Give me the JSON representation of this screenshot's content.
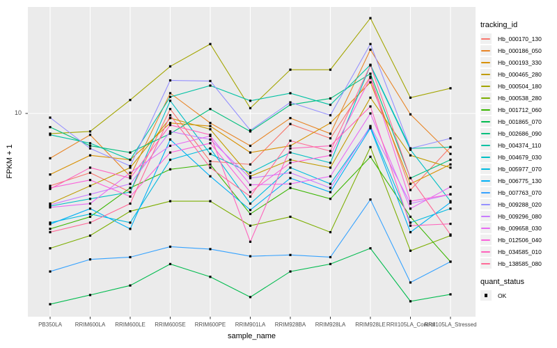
{
  "chart": {
    "xlabel": "sample_name",
    "ylabel": "FPKM + 1",
    "y_tick_label": "10",
    "legend": {
      "tracking_title": "tracking_id",
      "quant_title": "quant_status",
      "quant_label": "OK"
    },
    "colors": {
      "panel_bg": "#EBEBEB",
      "grid": "#FFFFFF",
      "axis_text": "#4D4D4D",
      "tick_mark": "#333333",
      "point": "#000000",
      "legend_key_bg": "#F0F0F0"
    }
  },
  "chart_data": {
    "type": "line",
    "title": "",
    "xlabel": "sample_name",
    "ylabel": "FPKM + 1",
    "y_scale": "log10",
    "y_ticks": [
      10
    ],
    "ylim": [
      1,
      32
    ],
    "grid": true,
    "legend_position": "right",
    "series_legend_title": "tracking_id",
    "marker_legend_title": "quant_status",
    "marker_legend_labels": [
      "OK"
    ],
    "point_marker": "black-square",
    "x": [
      "PB350LA",
      "RRIM600LA",
      "RRIM600LE",
      "RRIM600SE",
      "RRIM600PE",
      "RRIM901LA",
      "RRIM928BA",
      "RRIM928LA",
      "RRIM928LE",
      "RRII105LA_Control",
      "RRII105LA_Stressed"
    ],
    "series": [
      {
        "name": "Hb_000170_130",
        "color": "#F8766D",
        "values": [
          4.5,
          5.2,
          4.2,
          10.5,
          5.9,
          5.7,
          8.9,
          7.6,
          15.0,
          4.3,
          6.9
        ]
      },
      {
        "name": "Hb_000186_050",
        "color": "#E88526",
        "values": [
          6.1,
          7.9,
          5.0,
          12.5,
          9.0,
          7.0,
          9.5,
          8.0,
          20.2,
          9.9,
          6.4
        ]
      },
      {
        "name": "Hb_000193_330",
        "color": "#D89000",
        "values": [
          5.1,
          6.3,
          6.0,
          9.0,
          8.7,
          6.5,
          7.0,
          9.0,
          14.1,
          4.6,
          5.7
        ]
      },
      {
        "name": "Hb_000465_280",
        "color": "#C09B00",
        "values": [
          3.7,
          4.5,
          5.5,
          9.5,
          8.4,
          5.0,
          6.0,
          5.5,
          11.9,
          6.3,
          5.5
        ]
      },
      {
        "name": "Hb_000504_180",
        "color": "#A3A500",
        "values": [
          8.0,
          8.2,
          11.6,
          16.8,
          21.5,
          10.6,
          16.2,
          16.2,
          28.6,
          11.9,
          13.2
        ]
      },
      {
        "name": "Hb_000538_280",
        "color": "#7CAE00",
        "values": [
          2.26,
          2.6,
          3.4,
          3.8,
          3.8,
          2.9,
          3.2,
          2.7,
          6.9,
          2.2,
          2.6
        ]
      },
      {
        "name": "Hb_001712_060",
        "color": "#39B600",
        "values": [
          2.8,
          3.2,
          4.4,
          5.4,
          5.7,
          3.3,
          4.4,
          3.9,
          6.2,
          3.2,
          1.95
        ]
      },
      {
        "name": "Hb_001865_070",
        "color": "#00BB4E",
        "values": [
          1.22,
          1.35,
          1.5,
          1.9,
          1.65,
          1.32,
          1.75,
          1.9,
          2.26,
          1.26,
          1.36
        ]
      },
      {
        "name": "Hb_002686_090",
        "color": "#00BF7D",
        "values": [
          8.6,
          7.0,
          6.5,
          8.0,
          10.5,
          8.2,
          11.0,
          11.8,
          15.5,
          4.9,
          6.0
        ]
      },
      {
        "name": "Hb_004374_110",
        "color": "#00C1A3",
        "values": [
          7.9,
          7.2,
          6.0,
          12.0,
          13.6,
          11.5,
          12.5,
          11.0,
          17.1,
          6.8,
          6.9
        ]
      },
      {
        "name": "Hb_004679_030",
        "color": "#00BFC4",
        "values": [
          3.6,
          3.9,
          4.2,
          11.5,
          6.4,
          5.2,
          6.5,
          5.8,
          17.0,
          6.7,
          3.8
        ]
      },
      {
        "name": "Hb_005977_070",
        "color": "#00BAE0",
        "values": [
          3.0,
          3.3,
          3.0,
          6.0,
          6.8,
          3.7,
          5.5,
          4.6,
          8.6,
          3.0,
          3.5
        ]
      },
      {
        "name": "Hb_006775_130",
        "color": "#00B0F6",
        "values": [
          2.95,
          3.5,
          2.8,
          7.5,
          5.0,
          3.45,
          4.9,
          4.2,
          8.5,
          2.7,
          3.75
        ]
      },
      {
        "name": "Hb_007763_070",
        "color": "#35A2FF",
        "values": [
          1.75,
          2.0,
          2.05,
          2.3,
          2.24,
          2.07,
          2.1,
          2.05,
          3.87,
          1.55,
          1.95
        ]
      },
      {
        "name": "Hb_009288_020",
        "color": "#9590FF",
        "values": [
          9.55,
          6.8,
          5.6,
          14.4,
          14.3,
          8.3,
          11.3,
          9.8,
          21.5,
          6.8,
          7.6
        ]
      },
      {
        "name": "Hb_009296_080",
        "color": "#C77CFF",
        "values": [
          3.65,
          4.1,
          4.6,
          8.2,
          7.5,
          4.9,
          5.2,
          4.4,
          8.7,
          3.7,
          4.1
        ]
      },
      {
        "name": "Hb_009658_030",
        "color": "#E76BF3",
        "values": [
          3.55,
          3.7,
          5.2,
          7.0,
          7.8,
          4.55,
          4.6,
          5.0,
          10.0,
          3.5,
          4.45
        ]
      },
      {
        "name": "Hb_012506_040",
        "color": "#FA62DB",
        "values": [
          4.4,
          4.8,
          4.0,
          6.5,
          7.2,
          4.2,
          5.8,
          6.3,
          14.8,
          3.8,
          4.1
        ]
      },
      {
        "name": "Hb_034585_010",
        "color": "#FF62BC",
        "values": [
          4.35,
          5.5,
          4.9,
          8.8,
          7.9,
          2.43,
          6.8,
          7.0,
          10.8,
          2.9,
          2.96
        ]
      },
      {
        "name": "Hb_138585_080",
        "color": "#FF6A98",
        "values": [
          2.7,
          3.0,
          3.7,
          9.8,
          5.5,
          4.0,
          7.4,
          6.6,
          17.0,
          4.9,
          2.63
        ]
      }
    ]
  }
}
